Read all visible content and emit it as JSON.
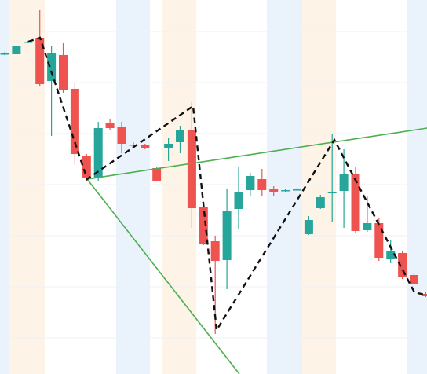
{
  "chart_data": {
    "type": "candlestick",
    "up_color": "#26a69a",
    "down_color": "#ef5350",
    "ylim": [
      0,
      476
    ],
    "yticks": [
      436,
      371,
      306,
      241,
      176,
      111,
      46
    ],
    "grid": true,
    "open": [
      408,
      407,
      422,
      428,
      373,
      406,
      363,
      278,
      249,
      319,
      315,
      292,
      292,
      262,
      287,
      295,
      311,
      213,
      169,
      145,
      210,
      234,
      248,
      236,
      234,
      235,
      178,
      211,
      230,
      233,
      255,
      183,
      192,
      147,
      154,
      126,
      102
    ],
    "high": [
      410,
      418,
      424,
      463,
      418,
      421,
      371,
      280,
      321,
      324,
      321,
      295,
      293,
      264,
      301,
      316,
      346,
      218,
      176,
      236,
      264,
      256,
      261,
      239,
      236,
      237,
      201,
      228,
      306,
      286,
      263,
      226,
      199,
      171,
      156,
      128,
      104
    ],
    "low": [
      406,
      407,
      421,
      366,
      303,
      358,
      266,
      246,
      246,
      311,
      281,
      289,
      286,
      245,
      271,
      281,
      186,
      164,
      51,
      108,
      184,
      226,
      226,
      226,
      232,
      233,
      177,
      210,
      194,
      186,
      180,
      181,
      144,
      141,
      121,
      114,
      98
    ],
    "close": [
      408,
      417,
      423,
      369,
      408,
      361,
      280,
      249,
      313,
      313,
      293,
      292,
      287,
      246,
      293,
      311,
      211,
      166,
      144,
      208,
      232,
      252,
      234,
      231,
      234,
      235,
      196,
      225,
      232,
      255,
      182,
      192,
      148,
      157,
      124,
      115,
      99
    ]
  }
}
